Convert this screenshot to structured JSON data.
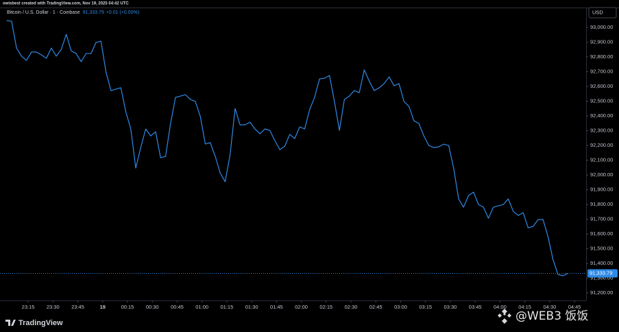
{
  "chart_data": {
    "type": "line",
    "attribution": "owisbest created with TradingView.com, Nov 19, 2025 04:42 UTC",
    "symbol": "Bitcoin / U.S. Dollar · 1 · Coinbase",
    "last_price": "91,333.79",
    "change": "+0.01 (+0.00%)",
    "currency": "USD",
    "brand": "TradingView",
    "watermark": "@WEB3 饭饭",
    "x": [
      "23:02",
      "23:05",
      "23:08",
      "23:11",
      "23:14",
      "23:17",
      "23:20",
      "23:23",
      "23:26",
      "23:29",
      "23:32",
      "23:35",
      "23:38",
      "23:41",
      "23:44",
      "23:47",
      "23:50",
      "23:53",
      "23:56",
      "23:59",
      "00:02",
      "00:05",
      "00:08",
      "00:11",
      "00:14",
      "00:17",
      "00:20",
      "00:23",
      "00:26",
      "00:29",
      "00:32",
      "00:35",
      "00:38",
      "00:41",
      "00:44",
      "00:47",
      "00:50",
      "00:53",
      "00:56",
      "00:59",
      "01:02",
      "01:05",
      "01:08",
      "01:11",
      "01:14",
      "01:17",
      "01:20",
      "01:23",
      "01:26",
      "01:29",
      "01:32",
      "01:35",
      "01:38",
      "01:41",
      "01:44",
      "01:47",
      "01:50",
      "01:53",
      "01:56",
      "01:59",
      "02:02",
      "02:05",
      "02:08",
      "02:11",
      "02:14",
      "02:17",
      "02:20",
      "02:23",
      "02:26",
      "02:29",
      "02:32",
      "02:35",
      "02:38",
      "02:41",
      "02:44",
      "02:47",
      "02:50",
      "02:53",
      "02:56",
      "02:59",
      "03:02",
      "03:05",
      "03:08",
      "03:11",
      "03:14",
      "03:17",
      "03:20",
      "03:23",
      "03:26",
      "03:29",
      "03:32",
      "03:35",
      "03:38",
      "03:41",
      "03:44",
      "03:47",
      "03:50",
      "03:53",
      "03:56",
      "03:59",
      "04:02",
      "04:05",
      "04:08",
      "04:11",
      "04:14",
      "04:17",
      "04:20",
      "04:23",
      "04:26",
      "04:29",
      "04:32",
      "04:35",
      "04:38",
      "04:41"
    ],
    "series": [
      {
        "name": "BTCUSD",
        "color": "#2e8ae6",
        "values": [
          93047,
          93042,
          92860,
          92805,
          92777,
          92833,
          92833,
          92814,
          92791,
          92860,
          92805,
          92851,
          92953,
          92842,
          92823,
          92768,
          92823,
          92823,
          92898,
          92907,
          92698,
          92572,
          92582,
          92591,
          92428,
          92312,
          92047,
          92186,
          92312,
          92265,
          92293,
          92117,
          92126,
          92349,
          92526,
          92535,
          92544,
          92512,
          92498,
          92396,
          92210,
          92219,
          92126,
          92014,
          91954,
          92140,
          92451,
          92340,
          92340,
          92358,
          92312,
          92279,
          92312,
          92302,
          92233,
          92172,
          92195,
          92275,
          92247,
          92326,
          92312,
          92442,
          92526,
          92651,
          92656,
          92674,
          92498,
          92302,
          92512,
          92535,
          92572,
          92558,
          92712,
          92637,
          92572,
          92591,
          92619,
          92665,
          92605,
          92619,
          92498,
          92465,
          92368,
          92349,
          92265,
          92200,
          92186,
          92191,
          92209,
          92200,
          92047,
          91838,
          91782,
          91861,
          91884,
          91800,
          91782,
          91707,
          91782,
          91791,
          91800,
          91838,
          91754,
          91726,
          91745,
          91642,
          91652,
          91698,
          91698,
          91582,
          91428,
          91326,
          91317,
          91333.79
        ]
      }
    ],
    "xlim": [
      "22:58",
      "04:52"
    ],
    "xticks": [
      "23:15",
      "23:30",
      "23:45",
      {
        "value": "00:00",
        "label": "19"
      },
      "00:15",
      "00:30",
      "00:45",
      "01:00",
      "01:15",
      "01:30",
      "01:45",
      "02:00",
      "02:15",
      "02:30",
      "02:45",
      "03:00",
      "03:15",
      "03:30",
      "03:45",
      "04:00",
      "04:15",
      "04:30",
      "04:45"
    ],
    "ylim": [
      91150,
      93130
    ],
    "yticks": [
      {
        "value": 91200,
        "label": "91,200.00"
      },
      {
        "value": 91300,
        "label": "91,300.00"
      },
      {
        "value": 91400,
        "label": "91,400.00"
      },
      {
        "value": 91500,
        "label": "91,500.00"
      },
      {
        "value": 91600,
        "label": "91,600.00"
      },
      {
        "value": 91700,
        "label": "91,700.00"
      },
      {
        "value": 91800,
        "label": "91,800.00"
      },
      {
        "value": 91900,
        "label": "91,900.00"
      },
      {
        "value": 92000,
        "label": "92,000.00"
      },
      {
        "value": 92100,
        "label": "92,100.00"
      },
      {
        "value": 92200,
        "label": "92,200.00"
      },
      {
        "value": 92300,
        "label": "92,300.00"
      },
      {
        "value": 92400,
        "label": "92,400.00"
      },
      {
        "value": 92500,
        "label": "92,500.00"
      },
      {
        "value": 92600,
        "label": "92,600.00"
      },
      {
        "value": 92700,
        "label": "92,700.00"
      },
      {
        "value": 92800,
        "label": "92,800.00"
      },
      {
        "value": 92900,
        "label": "92,900.00"
      },
      {
        "value": 93000,
        "label": "93,000.00"
      }
    ],
    "grid": false
  }
}
